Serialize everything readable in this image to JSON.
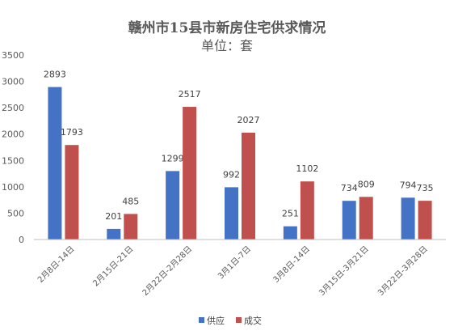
{
  "chart_data": {
    "type": "bar",
    "title": "赣州市15县市新房住宅供求情况",
    "subtitle": "单位：套",
    "categories": [
      "2月8日-14日",
      "2月15日-21日",
      "2月22日-2月28日",
      "3月1日-7日",
      "3月8日-14日",
      "3月15日-3月21日",
      "3月22日-3月28日"
    ],
    "series": [
      {
        "name": "供应",
        "color": "#4472C4",
        "values": [
          2893,
          201,
          1299,
          992,
          251,
          734,
          794
        ]
      },
      {
        "name": "成交",
        "color": "#C0504D",
        "values": [
          1793,
          485,
          2517,
          2027,
          1102,
          809,
          735
        ]
      }
    ],
    "ylim": [
      0,
      3500
    ],
    "yticks": [
      0,
      500,
      1000,
      1500,
      2000,
      2500,
      3000,
      3500
    ],
    "grid": false,
    "legend_position": "bottom"
  }
}
